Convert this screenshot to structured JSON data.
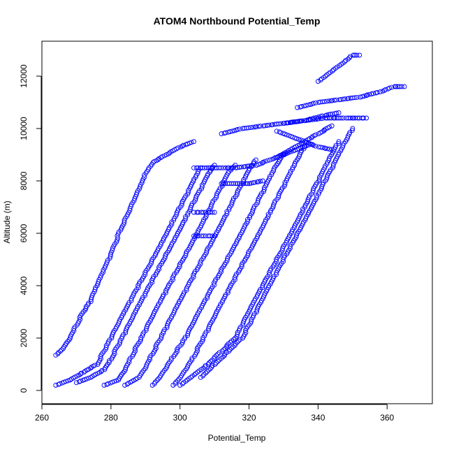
{
  "chart_data": {
    "type": "scatter",
    "title": "ATOM4 Northbound Potential_Temp",
    "xlabel": "Potential_Temp",
    "ylabel": "Altitude (m)",
    "xlim": [
      260,
      370
    ],
    "ylim": [
      0,
      13000
    ],
    "xticks": [
      260,
      280,
      300,
      320,
      340,
      360
    ],
    "yticks": [
      0,
      2000,
      4000,
      6000,
      8000,
      10000,
      12000
    ],
    "grid": false,
    "legend": "none",
    "marker": "open-circle",
    "color": "#0000ff",
    "series": [
      {
        "values": [
          [
            264,
            1350
          ],
          [
            266,
            1600
          ],
          [
            268,
            2000
          ],
          [
            270,
            2500
          ],
          [
            272,
            3000
          ],
          [
            274,
            3400
          ],
          [
            276,
            4000
          ],
          [
            278,
            4600
          ],
          [
            280,
            5200
          ],
          [
            282,
            5900
          ],
          [
            284,
            6500
          ],
          [
            286,
            7100
          ],
          [
            288,
            7700
          ],
          [
            290,
            8300
          ],
          [
            292,
            8700
          ],
          [
            296,
            9000
          ],
          [
            300,
            9300
          ],
          [
            304,
            9500
          ]
        ]
      },
      {
        "values": [
          [
            264,
            200
          ],
          [
            268,
            400
          ],
          [
            272,
            700
          ],
          [
            276,
            1000
          ],
          [
            278,
            1500
          ],
          [
            280,
            2000
          ],
          [
            282,
            2500
          ],
          [
            284,
            3000
          ],
          [
            286,
            3500
          ],
          [
            288,
            4000
          ],
          [
            290,
            4500
          ],
          [
            292,
            5000
          ],
          [
            294,
            5500
          ],
          [
            296,
            6000
          ],
          [
            298,
            6500
          ],
          [
            300,
            7000
          ],
          [
            302,
            7500
          ],
          [
            304,
            8000
          ],
          [
            306,
            8500
          ]
        ]
      },
      {
        "values": [
          [
            270,
            300
          ],
          [
            274,
            500
          ],
          [
            278,
            800
          ],
          [
            280,
            1200
          ],
          [
            282,
            1700
          ],
          [
            284,
            2200
          ],
          [
            286,
            2700
          ],
          [
            288,
            3200
          ],
          [
            290,
            3700
          ],
          [
            292,
            4200
          ],
          [
            294,
            4700
          ],
          [
            296,
            5200
          ],
          [
            298,
            5700
          ],
          [
            300,
            6200
          ],
          [
            302,
            6700
          ],
          [
            304,
            7200
          ],
          [
            306,
            7700
          ],
          [
            308,
            8200
          ],
          [
            310,
            8600
          ]
        ]
      },
      {
        "values": [
          [
            278,
            200
          ],
          [
            282,
            400
          ],
          [
            284,
            800
          ],
          [
            286,
            1300
          ],
          [
            288,
            1800
          ],
          [
            290,
            2300
          ],
          [
            292,
            2800
          ],
          [
            294,
            3300
          ],
          [
            296,
            3800
          ],
          [
            298,
            4300
          ],
          [
            300,
            4800
          ],
          [
            302,
            5300
          ],
          [
            304,
            5800
          ],
          [
            306,
            6300
          ],
          [
            308,
            6800
          ],
          [
            310,
            7300
          ],
          [
            312,
            7800
          ],
          [
            314,
            8300
          ],
          [
            316,
            8600
          ]
        ]
      },
      {
        "values": [
          [
            284,
            200
          ],
          [
            288,
            500
          ],
          [
            290,
            900
          ],
          [
            292,
            1400
          ],
          [
            294,
            1900
          ],
          [
            296,
            2400
          ],
          [
            298,
            2900
          ],
          [
            300,
            3400
          ],
          [
            302,
            3900
          ],
          [
            304,
            4400
          ],
          [
            306,
            4900
          ],
          [
            308,
            5400
          ],
          [
            310,
            5900
          ],
          [
            312,
            6400
          ],
          [
            314,
            6900
          ],
          [
            316,
            7400
          ],
          [
            318,
            7900
          ],
          [
            320,
            8400
          ],
          [
            322,
            8800
          ]
        ]
      },
      {
        "values": [
          [
            292,
            200
          ],
          [
            294,
            500
          ],
          [
            296,
            900
          ],
          [
            298,
            1300
          ],
          [
            300,
            1700
          ],
          [
            302,
            2100
          ],
          [
            304,
            2600
          ],
          [
            306,
            3100
          ],
          [
            308,
            3600
          ],
          [
            310,
            4100
          ],
          [
            312,
            4600
          ],
          [
            314,
            5100
          ],
          [
            316,
            5600
          ],
          [
            318,
            6100
          ],
          [
            320,
            6600
          ],
          [
            322,
            7100
          ],
          [
            324,
            7600
          ],
          [
            326,
            8100
          ],
          [
            328,
            8600
          ],
          [
            330,
            9000
          ]
        ]
      },
      {
        "values": [
          [
            298,
            200
          ],
          [
            300,
            500
          ],
          [
            302,
            900
          ],
          [
            304,
            1300
          ],
          [
            306,
            1800
          ],
          [
            308,
            2300
          ],
          [
            310,
            2800
          ],
          [
            312,
            3300
          ],
          [
            314,
            3800
          ],
          [
            316,
            4300
          ],
          [
            318,
            4800
          ],
          [
            320,
            5300
          ],
          [
            322,
            5800
          ],
          [
            324,
            6300
          ],
          [
            326,
            6800
          ],
          [
            328,
            7300
          ],
          [
            330,
            7800
          ],
          [
            332,
            8300
          ],
          [
            334,
            8800
          ],
          [
            336,
            9300
          ]
        ]
      },
      {
        "values": [
          [
            300,
            200
          ],
          [
            304,
            600
          ],
          [
            308,
            1000
          ],
          [
            312,
            1500
          ],
          [
            316,
            2000
          ],
          [
            318,
            2500
          ],
          [
            320,
            3000
          ],
          [
            322,
            3500
          ],
          [
            324,
            4000
          ],
          [
            326,
            4500
          ],
          [
            328,
            5000
          ],
          [
            330,
            5500
          ],
          [
            332,
            6000
          ],
          [
            334,
            6500
          ],
          [
            336,
            7000
          ],
          [
            338,
            7500
          ],
          [
            340,
            8000
          ],
          [
            342,
            8500
          ],
          [
            344,
            9000
          ],
          [
            346,
            9500
          ]
        ]
      },
      {
        "values": [
          [
            306,
            500
          ],
          [
            310,
            1000
          ],
          [
            314,
            1500
          ],
          [
            318,
            2000
          ],
          [
            320,
            2500
          ],
          [
            322,
            3000
          ],
          [
            324,
            3500
          ],
          [
            326,
            4000
          ],
          [
            328,
            4500
          ],
          [
            330,
            5000
          ],
          [
            332,
            5500
          ],
          [
            334,
            6000
          ],
          [
            336,
            6500
          ],
          [
            338,
            7000
          ],
          [
            340,
            7500
          ],
          [
            342,
            8000
          ],
          [
            344,
            8500
          ],
          [
            346,
            9000
          ],
          [
            348,
            9500
          ],
          [
            350,
            10000
          ]
        ]
      },
      {
        "values": [
          [
            304,
            8500
          ],
          [
            310,
            8500
          ],
          [
            316,
            8500
          ],
          [
            322,
            8600
          ],
          [
            326,
            8800
          ],
          [
            330,
            9000
          ],
          [
            334,
            9200
          ],
          [
            338,
            9400
          ]
        ]
      },
      {
        "values": [
          [
            330,
            10200
          ],
          [
            336,
            10300
          ],
          [
            342,
            10400
          ],
          [
            348,
            10400
          ],
          [
            354,
            10400
          ]
        ]
      },
      {
        "values": [
          [
            334,
            10800
          ],
          [
            340,
            11000
          ],
          [
            346,
            11100
          ],
          [
            352,
            11200
          ],
          [
            358,
            11400
          ],
          [
            362,
            11600
          ],
          [
            365,
            11600
          ]
        ]
      },
      {
        "values": [
          [
            340,
            11800
          ],
          [
            342,
            12000
          ],
          [
            344,
            12200
          ],
          [
            346,
            12400
          ],
          [
            348,
            12600
          ],
          [
            350,
            12800
          ],
          [
            352,
            12800
          ]
        ]
      },
      {
        "values": [
          [
            312,
            9800
          ],
          [
            318,
            10000
          ],
          [
            324,
            10100
          ],
          [
            330,
            10200
          ],
          [
            336,
            10300
          ],
          [
            342,
            10500
          ],
          [
            346,
            10600
          ]
        ]
      },
      {
        "values": [
          [
            304,
            5900
          ],
          [
            306,
            5900
          ],
          [
            308,
            5900
          ],
          [
            310,
            5900
          ]
        ]
      },
      {
        "values": [
          [
            304,
            6800
          ],
          [
            306,
            6800
          ],
          [
            308,
            6800
          ],
          [
            310,
            6800
          ]
        ]
      },
      {
        "values": [
          [
            312,
            7900
          ],
          [
            316,
            7900
          ],
          [
            320,
            7900
          ],
          [
            324,
            8000
          ]
        ]
      },
      {
        "values": [
          [
            328,
            8900
          ],
          [
            332,
            9200
          ],
          [
            336,
            9500
          ],
          [
            340,
            9800
          ],
          [
            344,
            10100
          ]
        ]
      },
      {
        "values": [
          [
            328,
            9900
          ],
          [
            332,
            9700
          ],
          [
            336,
            9500
          ],
          [
            340,
            9300
          ],
          [
            344,
            9200
          ]
        ]
      }
    ]
  }
}
